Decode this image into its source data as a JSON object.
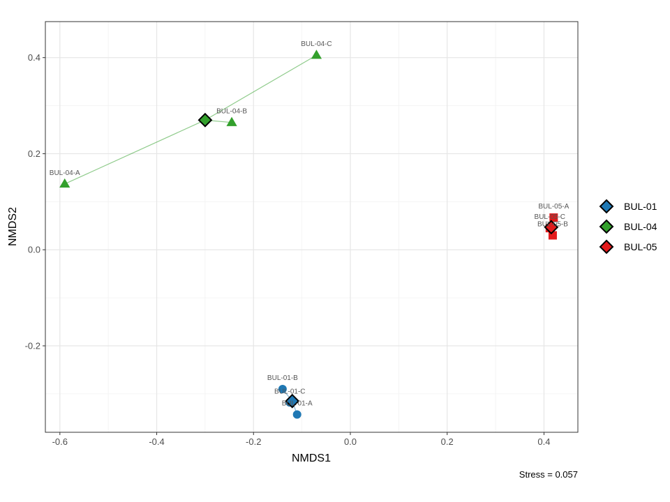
{
  "chart_data": {
    "type": "scatter",
    "xlabel": "NMDS1",
    "ylabel": "NMDS2",
    "xlim": [
      -0.63,
      0.47
    ],
    "ylim": [
      -0.38,
      0.475
    ],
    "x_ticks": [
      -0.6,
      -0.4,
      -0.2,
      0.0,
      0.2,
      0.4
    ],
    "x_tick_labels": [
      "-0.6",
      "-0.4",
      "-0.2",
      "0.0",
      "0.2",
      "0.4"
    ],
    "y_ticks": [
      -0.2,
      0.0,
      0.2,
      0.4
    ],
    "y_tick_labels": [
      "-0.2",
      "0.0",
      "0.2",
      "0.4"
    ],
    "grid": true,
    "legend_position": "right",
    "caption": "Stress = 0.057",
    "series": [
      {
        "name": "BUL-01",
        "color": "#1f78b4",
        "marker": "circle",
        "centroid": {
          "x": -0.12,
          "y": -0.315
        },
        "points": [
          {
            "label": "BUL-01-A",
            "x": -0.11,
            "y": -0.343
          },
          {
            "label": "BUL-01-B",
            "x": -0.14,
            "y": -0.29
          },
          {
            "label": "BUL-01-C",
            "x": -0.125,
            "y": -0.318
          }
        ]
      },
      {
        "name": "BUL-04",
        "color": "#33a02c",
        "marker": "triangle",
        "centroid": {
          "x": -0.3,
          "y": 0.27
        },
        "points": [
          {
            "label": "BUL-04-A",
            "x": -0.59,
            "y": 0.137
          },
          {
            "label": "BUL-04-B",
            "x": -0.245,
            "y": 0.265
          },
          {
            "label": "BUL-04-C",
            "x": -0.07,
            "y": 0.405
          }
        ]
      },
      {
        "name": "BUL-05",
        "color": "#e31a1c",
        "marker": "square",
        "centroid": {
          "x": 0.415,
          "y": 0.047
        },
        "points": [
          {
            "label": "BUL-05-A",
            "x": 0.42,
            "y": 0.067
          },
          {
            "label": "BUL-05-B",
            "x": 0.418,
            "y": 0.03
          },
          {
            "label": "BUL-05-C",
            "x": 0.412,
            "y": 0.045
          }
        ]
      }
    ]
  }
}
